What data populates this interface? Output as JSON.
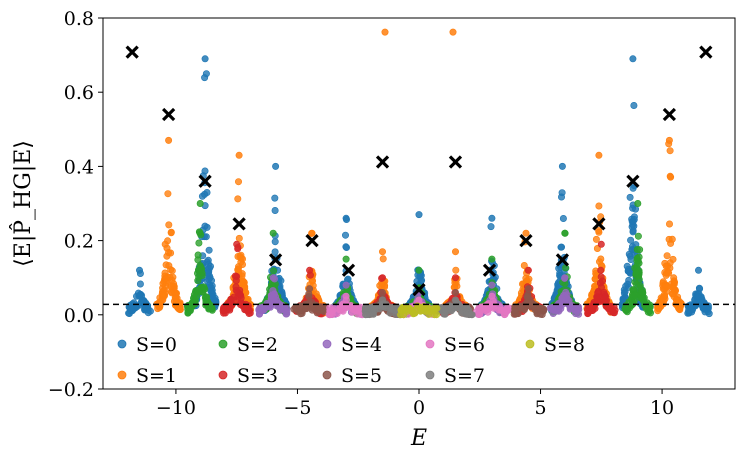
{
  "chart_data": {
    "type": "scatter",
    "xlabel": "E",
    "ylabel": "⟨E|P̂_HG|E⟩",
    "xlim": [
      -13.0,
      13.0
    ],
    "ylim": [
      -0.2,
      0.8
    ],
    "x_ticks": [
      {
        "v": -10,
        "label": "−10"
      },
      {
        "v": -5,
        "label": "−5"
      },
      {
        "v": 0,
        "label": "0"
      },
      {
        "v": 5,
        "label": "5"
      },
      {
        "v": 10,
        "label": "10"
      }
    ],
    "y_ticks": [
      {
        "v": -0.2,
        "label": "−0.2"
      },
      {
        "v": 0.0,
        "label": "0.0"
      },
      {
        "v": 0.2,
        "label": "0.2"
      },
      {
        "v": 0.4,
        "label": "0.4"
      },
      {
        "v": 0.6,
        "label": "0.6"
      },
      {
        "v": 0.8,
        "label": "0.8"
      }
    ],
    "reference_line": {
      "y": 0.028,
      "style": "dashed",
      "color": "#000000"
    },
    "series": [
      {
        "name": "S=0",
        "color": "#1f77b4",
        "peaks": [
          {
            "x": -8.8,
            "h": 0.69
          },
          {
            "x": -5.9,
            "h": 0.4
          },
          {
            "x": -3.0,
            "h": 0.26
          },
          {
            "x": 0.0,
            "h": 0.27
          },
          {
            "x": 3.0,
            "h": 0.26
          },
          {
            "x": 5.9,
            "h": 0.4
          },
          {
            "x": 8.8,
            "h": 0.69
          },
          {
            "x": -11.5,
            "h": 0.12
          },
          {
            "x": 11.5,
            "h": 0.12
          }
        ]
      },
      {
        "name": "S=1",
        "color": "#ff7f0e",
        "peaks": [
          {
            "x": -10.3,
            "h": 0.47
          },
          {
            "x": -7.4,
            "h": 0.43
          },
          {
            "x": -4.4,
            "h": 0.22
          },
          {
            "x": -1.5,
            "h": 0.17
          },
          {
            "x": 1.5,
            "h": 0.17
          },
          {
            "x": 4.4,
            "h": 0.22
          },
          {
            "x": 7.4,
            "h": 0.43
          },
          {
            "x": 10.3,
            "h": 0.47
          }
        ],
        "extra_points": [
          {
            "x": -1.4,
            "y": 0.762
          },
          {
            "x": 1.4,
            "y": 0.762
          }
        ]
      },
      {
        "name": "S=2",
        "color": "#2ca02c",
        "peaks": [
          {
            "x": -9.0,
            "h": 0.3
          },
          {
            "x": -6.0,
            "h": 0.22
          },
          {
            "x": -3.0,
            "h": 0.15
          },
          {
            "x": 0.0,
            "h": 0.12
          },
          {
            "x": 3.0,
            "h": 0.15
          },
          {
            "x": 6.0,
            "h": 0.22
          },
          {
            "x": 9.0,
            "h": 0.3
          }
        ]
      },
      {
        "name": "S=3",
        "color": "#d62728",
        "peaks": [
          {
            "x": -7.5,
            "h": 0.19
          },
          {
            "x": -4.5,
            "h": 0.12
          },
          {
            "x": -1.5,
            "h": 0.1
          },
          {
            "x": 1.5,
            "h": 0.1
          },
          {
            "x": 4.5,
            "h": 0.12
          },
          {
            "x": 7.5,
            "h": 0.19
          }
        ]
      },
      {
        "name": "S=4",
        "color": "#9467bd",
        "peaks": [
          {
            "x": -6.0,
            "h": 0.1
          },
          {
            "x": -3.0,
            "h": 0.08
          },
          {
            "x": 0.0,
            "h": 0.06
          },
          {
            "x": 3.0,
            "h": 0.08
          },
          {
            "x": 6.0,
            "h": 0.1
          }
        ]
      },
      {
        "name": "S=5",
        "color": "#8c564b",
        "peaks": [
          {
            "x": -4.5,
            "h": 0.07
          },
          {
            "x": -1.5,
            "h": 0.06
          },
          {
            "x": 1.5,
            "h": 0.06
          },
          {
            "x": 4.5,
            "h": 0.07
          }
        ]
      },
      {
        "name": "S=6",
        "color": "#e377c2",
        "peaks": [
          {
            "x": -3.0,
            "h": 0.05
          },
          {
            "x": 0.0,
            "h": 0.04
          },
          {
            "x": 3.0,
            "h": 0.05
          }
        ]
      },
      {
        "name": "S=7",
        "color": "#7f7f7f",
        "peaks": [
          {
            "x": -1.5,
            "h": 0.04
          },
          {
            "x": 1.5,
            "h": 0.04
          }
        ]
      },
      {
        "name": "S=8",
        "color": "#bcbd22",
        "peaks": [
          {
            "x": 0.0,
            "h": 0.02
          }
        ]
      }
    ],
    "markers": {
      "symbol": "x",
      "color": "#000000",
      "points": [
        {
          "x": -11.8,
          "y": 0.708
        },
        {
          "x": -10.3,
          "y": 0.54
        },
        {
          "x": -8.8,
          "y": 0.36
        },
        {
          "x": -7.4,
          "y": 0.245
        },
        {
          "x": -5.9,
          "y": 0.148
        },
        {
          "x": -4.4,
          "y": 0.2
        },
        {
          "x": -2.9,
          "y": 0.12
        },
        {
          "x": -1.5,
          "y": 0.412
        },
        {
          "x": 0.0,
          "y": 0.068
        },
        {
          "x": 1.5,
          "y": 0.412
        },
        {
          "x": 2.9,
          "y": 0.12
        },
        {
          "x": 4.4,
          "y": 0.2
        },
        {
          "x": 5.9,
          "y": 0.148
        },
        {
          "x": 7.4,
          "y": 0.245
        },
        {
          "x": 8.8,
          "y": 0.36
        },
        {
          "x": 10.3,
          "y": 0.54
        },
        {
          "x": 11.8,
          "y": 0.708
        }
      ]
    },
    "legend": {
      "placement": "lower-left",
      "columns": 5
    }
  }
}
